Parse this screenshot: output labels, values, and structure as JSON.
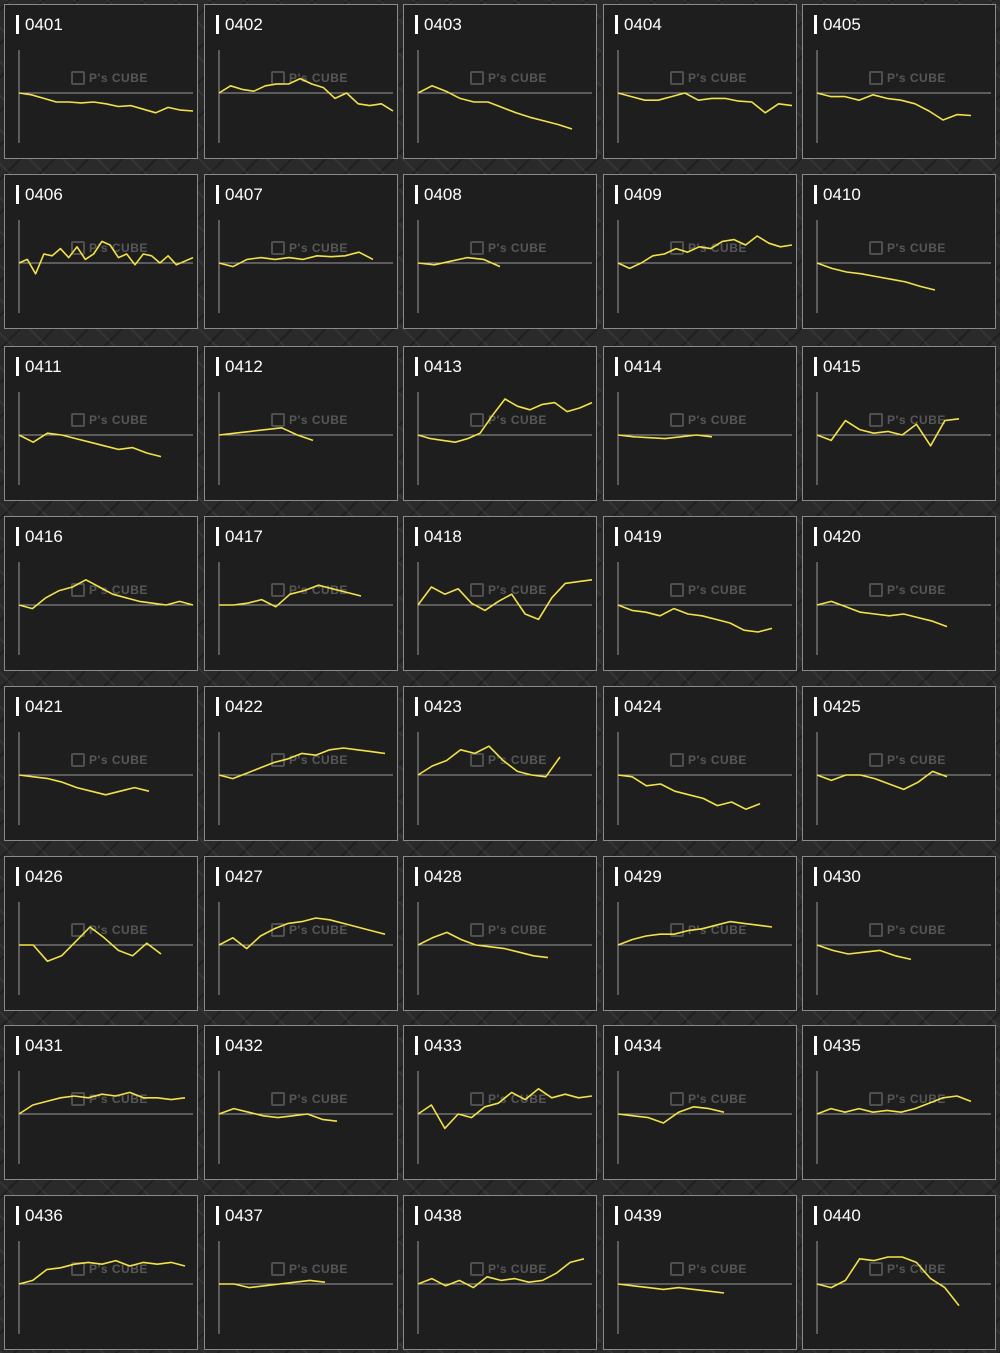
{
  "watermark": "P's CUBE",
  "line_color": "#f2e24a",
  "baseline_color": "#9a9a9a",
  "chart_data": {
    "type": "line",
    "y_baseline": 0,
    "ylim": [
      -3,
      3
    ],
    "charts": [
      {
        "label": "0401",
        "values": [
          0,
          -0.1,
          -0.3,
          -0.5,
          -0.5,
          -0.55,
          -0.5,
          -0.6,
          -0.75,
          -0.7,
          -0.9,
          -1.1,
          -0.8,
          -0.95,
          -1.0
        ]
      },
      {
        "label": "0402",
        "values": [
          0,
          0.4,
          0.2,
          0.1,
          0.4,
          0.5,
          0.5,
          0.8,
          0.5,
          0.3,
          -0.3,
          0,
          -0.6,
          -0.7,
          -0.6,
          -1.0
        ]
      },
      {
        "label": "0403",
        "values": [
          0,
          0.4,
          0.1,
          -0.3,
          -0.5,
          -0.5,
          -0.8,
          -1.1,
          -1.35,
          -1.55,
          -1.75,
          -2.0
        ]
      },
      {
        "label": "0404",
        "values": [
          0,
          -0.2,
          -0.4,
          -0.4,
          -0.2,
          0,
          -0.4,
          -0.3,
          -0.3,
          -0.45,
          -0.5,
          -1.1,
          -0.6,
          -0.7
        ]
      },
      {
        "label": "0405",
        "values": [
          0,
          -0.2,
          -0.2,
          -0.4,
          -0.1,
          -0.3,
          -0.4,
          -0.6,
          -1.0,
          -1.5,
          -1.2,
          -1.25
        ]
      },
      {
        "label": "0406",
        "values": [
          0,
          0.2,
          -0.6,
          0.5,
          0.4,
          0.8,
          0.3,
          0.9,
          0.2,
          0.5,
          1.2,
          1.0,
          0.3,
          0.5,
          -0.1,
          0.5,
          0.4,
          0,
          0.4,
          -0.1,
          0.1,
          0.3
        ]
      },
      {
        "label": "0407",
        "values": [
          0,
          -0.2,
          0.2,
          0.3,
          0.2,
          0.3,
          0.2,
          0.4,
          0.35,
          0.4,
          0.6,
          0.2
        ]
      },
      {
        "label": "0408",
        "values": [
          0,
          -0.1,
          0.1,
          0.3,
          0.2,
          -0.2
        ]
      },
      {
        "label": "0409",
        "values": [
          0,
          -0.3,
          0,
          0.4,
          0.5,
          0.8,
          0.6,
          0.9,
          0.8,
          1.2,
          1.3,
          1.0,
          1.5,
          1.1,
          0.9,
          1.0
        ]
      },
      {
        "label": "0410",
        "values": [
          0,
          -0.3,
          -0.5,
          -0.6,
          -0.75,
          -0.9,
          -1.05,
          -1.3,
          -1.5
        ]
      },
      {
        "label": "0411",
        "values": [
          0,
          -0.4,
          0.1,
          0,
          -0.2,
          -0.4,
          -0.6,
          -0.8,
          -0.7,
          -1.0,
          -1.2
        ]
      },
      {
        "label": "0412",
        "values": [
          0,
          0.1,
          0.2,
          0.3,
          0.4,
          0,
          -0.3
        ]
      },
      {
        "label": "0413",
        "values": [
          0,
          -0.2,
          -0.3,
          -0.4,
          -0.2,
          0.1,
          1.1,
          2.0,
          1.6,
          1.4,
          1.7,
          1.8,
          1.3,
          1.5,
          1.8
        ]
      },
      {
        "label": "0414",
        "values": [
          0,
          -0.1,
          -0.15,
          -0.2,
          -0.1,
          0,
          -0.1
        ]
      },
      {
        "label": "0415",
        "values": [
          0,
          -0.3,
          0.8,
          0.3,
          0.1,
          0.2,
          0,
          0.6,
          -0.6,
          0.8,
          0.9
        ]
      },
      {
        "label": "0416",
        "values": [
          0,
          -0.2,
          0.4,
          0.8,
          1.0,
          1.4,
          1.0,
          0.6,
          0.4,
          0.2,
          0.1,
          0,
          0.2,
          0
        ]
      },
      {
        "label": "0417",
        "values": [
          0,
          0,
          0.1,
          0.3,
          -0.1,
          0.6,
          0.8,
          1.1,
          0.9,
          0.7,
          0.5
        ]
      },
      {
        "label": "0418",
        "values": [
          0,
          1.0,
          0.6,
          0.9,
          0.1,
          -0.3,
          0.2,
          0.6,
          -0.5,
          -0.8,
          0.4,
          1.2,
          1.3,
          1.4
        ]
      },
      {
        "label": "0419",
        "values": [
          0,
          -0.3,
          -0.4,
          -0.6,
          -0.2,
          -0.5,
          -0.6,
          -0.8,
          -1.0,
          -1.4,
          -1.5,
          -1.3
        ]
      },
      {
        "label": "0420",
        "values": [
          0,
          0.2,
          -0.1,
          -0.4,
          -0.5,
          -0.6,
          -0.5,
          -0.7,
          -0.9,
          -1.2
        ]
      },
      {
        "label": "0421",
        "values": [
          0,
          -0.1,
          -0.2,
          -0.4,
          -0.7,
          -0.9,
          -1.1,
          -0.9,
          -0.7,
          -0.9
        ]
      },
      {
        "label": "0422",
        "values": [
          0,
          -0.2,
          0.1,
          0.4,
          0.7,
          0.9,
          1.2,
          1.1,
          1.4,
          1.5,
          1.4,
          1.3,
          1.2
        ]
      },
      {
        "label": "0423",
        "values": [
          0,
          0.5,
          0.8,
          1.4,
          1.2,
          1.6,
          0.8,
          0.2,
          0,
          -0.1,
          1.0
        ]
      },
      {
        "label": "0424",
        "values": [
          0,
          -0.1,
          -0.6,
          -0.5,
          -0.9,
          -1.1,
          -1.3,
          -1.7,
          -1.5,
          -1.9,
          -1.6
        ]
      },
      {
        "label": "0425",
        "values": [
          0,
          -0.3,
          0,
          0,
          -0.2,
          -0.5,
          -0.8,
          -0.4,
          0.2,
          -0.1
        ]
      },
      {
        "label": "0426",
        "values": [
          0,
          0,
          -0.9,
          -0.6,
          0.2,
          1.0,
          0.4,
          -0.3,
          -0.6,
          0.1,
          -0.5
        ]
      },
      {
        "label": "0427",
        "values": [
          0,
          0.4,
          -0.2,
          0.5,
          0.9,
          1.2,
          1.3,
          1.5,
          1.4,
          1.2,
          1.0,
          0.8,
          0.6
        ]
      },
      {
        "label": "0428",
        "values": [
          0,
          0.4,
          0.7,
          0.3,
          0,
          -0.1,
          -0.2,
          -0.4,
          -0.6,
          -0.7
        ]
      },
      {
        "label": "0429",
        "values": [
          0,
          0.3,
          0.5,
          0.6,
          0.6,
          0.8,
          0.9,
          1.1,
          1.3,
          1.2,
          1.1,
          1.0
        ]
      },
      {
        "label": "0430",
        "values": [
          0,
          -0.3,
          -0.5,
          -0.4,
          -0.3,
          -0.6,
          -0.8
        ]
      },
      {
        "label": "0431",
        "values": [
          0,
          0.5,
          0.7,
          0.9,
          1.0,
          0.9,
          1.1,
          1.0,
          1.2,
          0.9,
          0.9,
          0.8,
          0.9
        ]
      },
      {
        "label": "0432",
        "values": [
          0,
          0.3,
          0.1,
          -0.1,
          -0.2,
          -0.1,
          0,
          -0.3,
          -0.4
        ]
      },
      {
        "label": "0433",
        "values": [
          0,
          0.5,
          -0.8,
          0,
          -0.2,
          0.4,
          0.6,
          1.2,
          0.8,
          1.4,
          0.9,
          1.1,
          0.9,
          1.0
        ]
      },
      {
        "label": "0434",
        "values": [
          0,
          -0.1,
          -0.2,
          -0.5,
          0.1,
          0.4,
          0.3,
          0.1
        ]
      },
      {
        "label": "0435",
        "values": [
          0,
          0.3,
          0.1,
          0.3,
          0.1,
          0.2,
          0.1,
          0.3,
          0.6,
          0.9,
          1.0,
          0.7
        ]
      },
      {
        "label": "0436",
        "values": [
          0,
          0.2,
          0.8,
          0.9,
          1.1,
          1.2,
          1.1,
          1.3,
          1.0,
          1.2,
          1.1,
          1.2,
          1.0
        ]
      },
      {
        "label": "0437",
        "values": [
          0,
          0,
          -0.2,
          -0.1,
          0,
          0.1,
          0.2,
          0.1
        ]
      },
      {
        "label": "0438",
        "values": [
          0,
          0.3,
          -0.1,
          0.2,
          -0.2,
          0.4,
          0.2,
          0.3,
          0.1,
          0.2,
          0.6,
          1.2,
          1.4
        ]
      },
      {
        "label": "0439",
        "values": [
          0,
          -0.1,
          -0.2,
          -0.3,
          -0.2,
          -0.3,
          -0.4,
          -0.5
        ]
      },
      {
        "label": "0440",
        "values": [
          0,
          -0.2,
          0.2,
          1.4,
          1.3,
          1.5,
          1.5,
          1.2,
          0.3,
          -0.2,
          -1.2
        ]
      }
    ]
  }
}
